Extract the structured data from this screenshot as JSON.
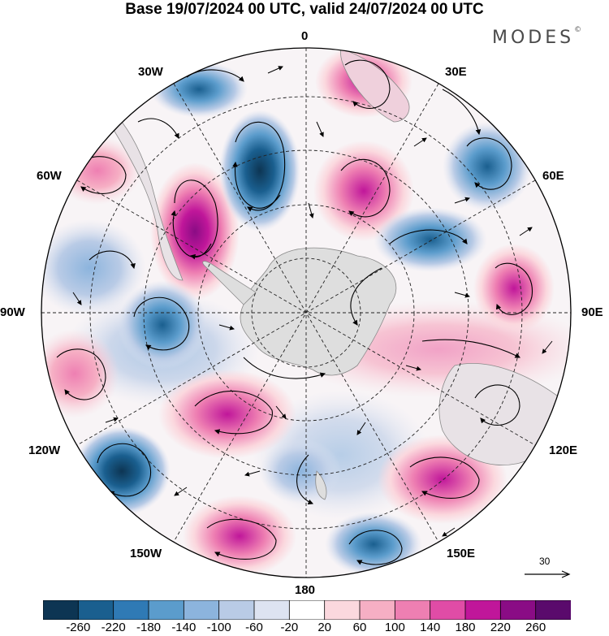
{
  "header": {
    "title": "Base 19/07/2024 00 UTC, valid 24/07/2024 00 UTC",
    "brand": "MODES",
    "brand_mark": "©"
  },
  "map": {
    "projection": "south-polar-stereographic",
    "longitude_labels": {
      "lon_0": "0",
      "lon_30e": "30E",
      "lon_60e": "60E",
      "lon_90e": "90E",
      "lon_120e": "120E",
      "lon_150e": "150E",
      "lon_180": "180",
      "lon_150w": "150W",
      "lon_120w": "120W",
      "lon_90w": "90W",
      "lon_60w": "60W",
      "lon_30w": "30W"
    },
    "positive_color": "#e0409a",
    "negative_color": "#2f6ea8",
    "land_color": "#dedede"
  },
  "vector_scale": {
    "label": "30"
  },
  "colorbar": {
    "ticks": [
      "-260",
      "-220",
      "-180",
      "-140",
      "-100",
      "-60",
      "-20",
      "20",
      "60",
      "100",
      "140",
      "180",
      "220",
      "260"
    ],
    "colors": [
      "#0d3553",
      "#1a5f8f",
      "#2f7ab5",
      "#5b9ccc",
      "#8cb4dd",
      "#b9cbe6",
      "#dde3f1",
      "#ffffff",
      "#fbd8de",
      "#f6afc4",
      "#ee7fb2",
      "#e04ca6",
      "#c0169a",
      "#8a0c85",
      "#5a0a6c"
    ]
  }
}
